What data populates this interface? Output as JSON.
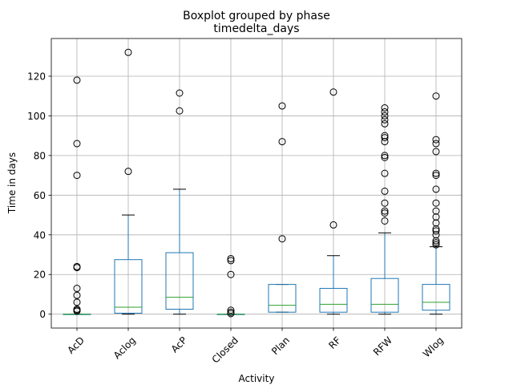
{
  "chart_data": {
    "type": "box",
    "suptitle": "Boxplot grouped by phase",
    "title": "timedelta_days",
    "xlabel": "Activity",
    "ylabel": "Time in days",
    "ylim": [
      -7,
      139
    ],
    "yticks": [
      0,
      20,
      40,
      60,
      80,
      100,
      120
    ],
    "grid": true,
    "categories": [
      "AcD",
      "Aclog",
      "AcP",
      "Closed",
      "Plan",
      "RF",
      "RFW",
      "Wlog"
    ],
    "boxes": [
      {
        "category": "AcD",
        "whisker_low": 0,
        "q1": 0,
        "median": 0,
        "q3": 0,
        "whisker_high": 0,
        "fliers": [
          118,
          86,
          70,
          24,
          23.5,
          13,
          9.5,
          6,
          2.5,
          2,
          1.5
        ]
      },
      {
        "category": "Aclog",
        "whisker_low": 0,
        "q1": 0.5,
        "median": 3.5,
        "q3": 27.5,
        "whisker_high": 50,
        "fliers": [
          132,
          72
        ]
      },
      {
        "category": "AcP",
        "whisker_low": 0,
        "q1": 2.5,
        "median": 8.5,
        "q3": 31,
        "whisker_high": 63,
        "fliers": [
          111.5,
          102.5
        ]
      },
      {
        "category": "Closed",
        "whisker_low": 0,
        "q1": 0,
        "median": 0,
        "q3": 0,
        "whisker_high": 0,
        "fliers": [
          28,
          27,
          20,
          2,
          1,
          0.3
        ]
      },
      {
        "category": "Plan",
        "whisker_low": 1,
        "q1": 1,
        "median": 4.5,
        "q3": 15,
        "whisker_high": 15,
        "fliers": [
          105,
          87,
          38
        ]
      },
      {
        "category": "RF",
        "whisker_low": 0,
        "q1": 1,
        "median": 5,
        "q3": 13,
        "whisker_high": 29.5,
        "fliers": [
          112,
          45
        ]
      },
      {
        "category": "RFW",
        "whisker_low": 0,
        "q1": 1,
        "median": 5,
        "q3": 18,
        "whisker_high": 41,
        "fliers": [
          104,
          102,
          100,
          98,
          96,
          90,
          89,
          87,
          80,
          79,
          71,
          62,
          56,
          52,
          51,
          47
        ]
      },
      {
        "category": "Wlog",
        "whisker_low": 0,
        "q1": 2,
        "median": 6,
        "q3": 15,
        "whisker_high": 34,
        "fliers": [
          110,
          88,
          86,
          82,
          71,
          70,
          63,
          56,
          52,
          49,
          46,
          43,
          42,
          40,
          37,
          36,
          35
        ]
      }
    ]
  }
}
